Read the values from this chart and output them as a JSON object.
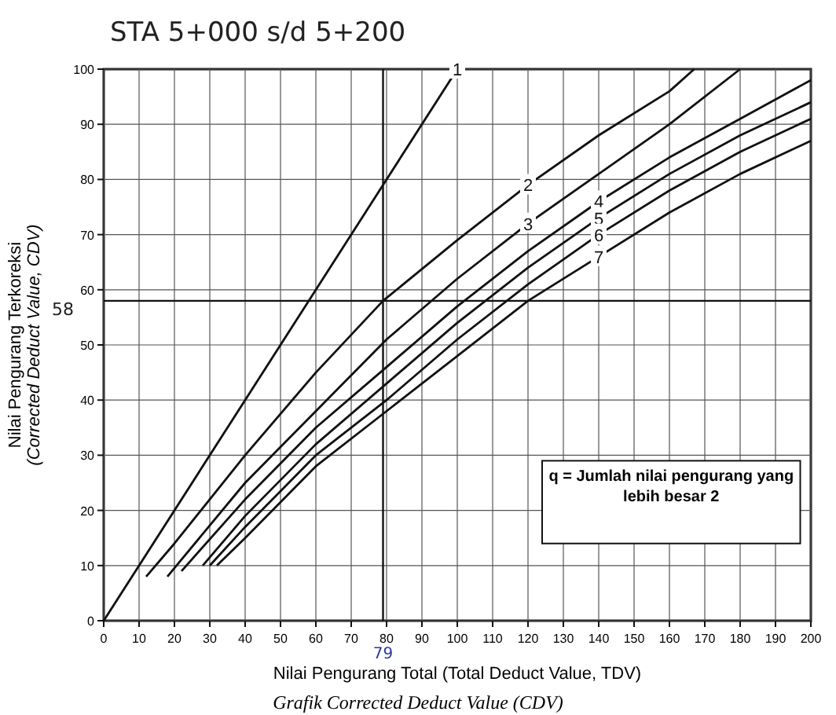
{
  "chart_data": {
    "type": "line",
    "title": "STA 5+000 s/d 5+200",
    "xlabel": "Nilai Pengurang Total (Total Deduct Value, TDV)",
    "ylabel": "Nilai Pengurang Terkoreksi\n(Corrected Deduct Value, CDV)",
    "xlim": [
      0,
      200
    ],
    "ylim": [
      0,
      100
    ],
    "xticks": [
      0,
      10,
      20,
      30,
      40,
      50,
      60,
      70,
      80,
      90,
      100,
      110,
      120,
      130,
      140,
      150,
      160,
      170,
      180,
      190,
      200
    ],
    "yticks": [
      0,
      10,
      20,
      30,
      40,
      50,
      60,
      70,
      80,
      90,
      100
    ],
    "grid": true,
    "line_style": "solid",
    "series": [
      {
        "name": "1",
        "color": "#111111",
        "x": [
          0,
          100
        ],
        "values": [
          0,
          100
        ]
      },
      {
        "name": "2",
        "color": "#111111",
        "x": [
          12,
          20,
          40,
          60,
          79,
          100,
          120,
          140,
          160,
          167
        ],
        "values": [
          8,
          14,
          30,
          45,
          58,
          69,
          79,
          88,
          96,
          100
        ]
      },
      {
        "name": "3",
        "color": "#111111",
        "x": [
          18,
          40,
          60,
          80,
          100,
          120,
          140,
          160,
          180
        ],
        "values": [
          8,
          25,
          38,
          51,
          62,
          72,
          81,
          90,
          100
        ]
      },
      {
        "name": "4",
        "color": "#111111",
        "x": [
          22,
          40,
          60,
          80,
          100,
          120,
          140,
          160,
          180,
          200
        ],
        "values": [
          9,
          22,
          35,
          46,
          57,
          67,
          76,
          84,
          91,
          98
        ]
      },
      {
        "name": "5",
        "color": "#111111",
        "x": [
          28,
          40,
          60,
          80,
          100,
          120,
          140,
          160,
          180,
          200
        ],
        "values": [
          10,
          19,
          32,
          43,
          54,
          64,
          73,
          81,
          88,
          94
        ]
      },
      {
        "name": "6",
        "color": "#111111",
        "x": [
          30,
          40,
          60,
          80,
          100,
          120,
          140,
          160,
          180,
          200
        ],
        "values": [
          10,
          17,
          30,
          40,
          51,
          61,
          70,
          78,
          85,
          91
        ]
      },
      {
        "name": "7",
        "color": "#111111",
        "x": [
          32,
          40,
          60,
          80,
          100,
          120,
          140,
          160,
          180,
          200
        ],
        "values": [
          10,
          15,
          28,
          38,
          48,
          58,
          66,
          74,
          81,
          87
        ]
      }
    ],
    "ref_lines": [
      {
        "axis": "y",
        "value": 58,
        "label": "58",
        "color": "#111111"
      },
      {
        "axis": "x",
        "value": 79,
        "label": "79",
        "color": "#111111"
      }
    ],
    "annotations": [
      "q = Jumlah nilai pengurang yang lebih besar 2",
      "Grafik Corrected Deduct Value (CDV)"
    ]
  }
}
